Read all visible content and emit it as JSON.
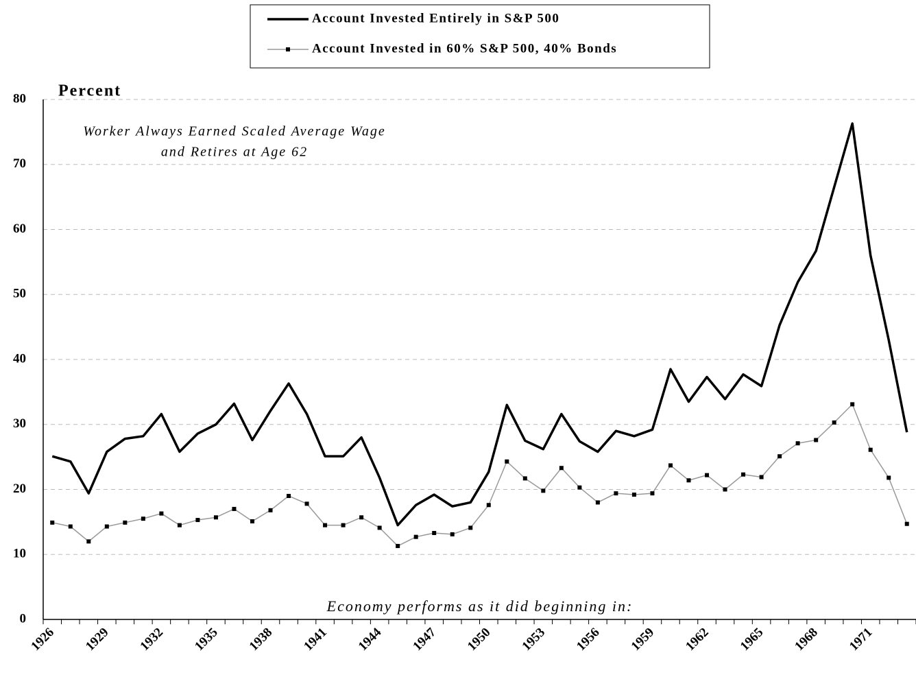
{
  "chart_data": {
    "type": "line",
    "y_axis_label": "Percent",
    "annotations": [
      "Worker Always Earned Scaled Average Wage",
      "and Retires at Age 62",
      "Economy performs as it did beginning in:"
    ],
    "categories": [
      "1926",
      null,
      null,
      "1929",
      null,
      null,
      "1932",
      null,
      null,
      "1935",
      null,
      null,
      "1938",
      null,
      null,
      "1941",
      null,
      null,
      "1944",
      null,
      null,
      "1947",
      null,
      null,
      "1950",
      null,
      null,
      "1953",
      null,
      null,
      "1956",
      null,
      null,
      "1959",
      null,
      null,
      "1962",
      null,
      null,
      "1965",
      null,
      null,
      "1968",
      null,
      null,
      "1971",
      null,
      null
    ],
    "series": [
      {
        "name": "Account Invested Entirely in S&P 500",
        "color": "#000000",
        "marker": false,
        "values": [
          25.1,
          24.3,
          19.4,
          25.8,
          27.8,
          28.2,
          31.6,
          25.8,
          28.6,
          30.0,
          33.2,
          27.6,
          32.1,
          36.3,
          31.6,
          25.1,
          25.1,
          28.0,
          21.8,
          14.5,
          17.6,
          19.2,
          17.4,
          18.0,
          22.7,
          33.0,
          27.5,
          26.2,
          31.6,
          27.4,
          25.8,
          29.0,
          28.2,
          29.2,
          38.5,
          33.5,
          37.3,
          33.9,
          37.7,
          35.9,
          45.3,
          51.9,
          56.7,
          66.5,
          76.3,
          56.0,
          43.0,
          28.8
        ]
      },
      {
        "name": "Account Invested in 60% S&P 500, 40% Bonds",
        "color": "#999999",
        "marker": true,
        "values": [
          14.9,
          14.3,
          12.0,
          14.3,
          14.9,
          15.5,
          16.3,
          14.5,
          15.3,
          15.7,
          17.0,
          15.1,
          16.8,
          19.0,
          17.8,
          14.5,
          14.5,
          15.7,
          14.1,
          11.3,
          12.7,
          13.3,
          13.1,
          14.1,
          17.6,
          24.3,
          21.7,
          19.8,
          23.3,
          20.3,
          18.0,
          19.4,
          19.2,
          19.4,
          23.7,
          21.4,
          22.2,
          20.0,
          22.3,
          21.9,
          25.1,
          27.1,
          27.6,
          30.3,
          33.1,
          26.1,
          21.8,
          14.7
        ]
      }
    ],
    "ylim": [
      0,
      80
    ],
    "yticks": [
      0,
      10,
      20,
      30,
      40,
      50,
      60,
      70,
      80
    ],
    "grid": true
  }
}
